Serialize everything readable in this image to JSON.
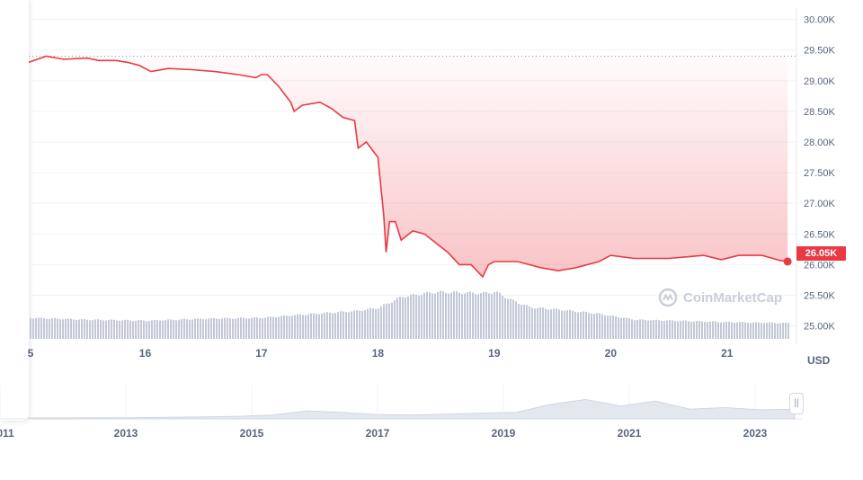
{
  "chart_data": {
    "type": "area",
    "title": "",
    "xlabel": "",
    "ylabel": "",
    "unit_label": "USD",
    "ylim": [
      24700,
      30200
    ],
    "y_ticks": [
      25000,
      25500,
      26000,
      26500,
      27000,
      27500,
      28000,
      28500,
      29000,
      29500,
      30000
    ],
    "y_tick_labels": [
      "25.00K",
      "25.50K",
      "26.00K",
      "26.50K",
      "27.00K",
      "27.50K",
      "28.00K",
      "28.50K",
      "29.00K",
      "29.50K",
      "30.00K"
    ],
    "x_ticks": [
      16,
      17,
      18,
      19,
      20,
      21
    ],
    "x_tick_labels": [
      "16",
      "17",
      "18",
      "19",
      "20",
      "21"
    ],
    "x_edge_label": "5",
    "xlim": [
      15,
      21.55
    ],
    "reference_level": 29400,
    "current_price": 26050,
    "current_price_label": "26.05K",
    "series": [
      {
        "type": "line",
        "x": [
          15.0,
          15.15,
          15.3,
          15.5,
          15.6,
          15.75,
          15.85,
          15.95,
          16.05,
          16.2,
          16.4,
          16.6,
          16.8,
          16.95,
          17.0,
          17.05,
          17.15,
          17.25,
          17.28,
          17.35,
          17.5,
          17.6,
          17.7,
          17.8,
          17.83,
          17.9,
          17.98,
          18.0,
          18.05,
          18.07,
          18.1,
          18.15,
          18.2,
          18.3,
          18.4,
          18.5,
          18.6,
          18.7,
          18.8,
          18.9,
          18.95,
          19.0,
          19.2,
          19.4,
          19.55,
          19.7,
          19.9,
          20.0,
          20.2,
          20.5,
          20.8,
          20.95,
          21.1,
          21.3,
          21.45,
          21.52
        ],
        "y": [
          29300,
          29400,
          29350,
          29370,
          29330,
          29330,
          29300,
          29250,
          29150,
          29200,
          29180,
          29150,
          29100,
          29050,
          29100,
          29100,
          28900,
          28650,
          28500,
          28600,
          28650,
          28550,
          28400,
          28350,
          27900,
          28000,
          27800,
          27750,
          26800,
          26200,
          26700,
          26700,
          26400,
          26550,
          26500,
          26350,
          26200,
          26000,
          26000,
          25800,
          26000,
          26050,
          26050,
          25950,
          25900,
          25950,
          26050,
          26150,
          26100,
          26100,
          26150,
          26080,
          26150,
          26150,
          26070,
          26050
        ]
      },
      {
        "name": "volume",
        "type": "bar",
        "x": [
          15.0,
          15.5,
          16.0,
          16.5,
          17.0,
          17.3,
          17.8,
          18.0,
          18.2,
          18.5,
          18.9,
          19.0,
          19.15,
          19.3,
          19.6,
          19.9,
          20.2,
          20.5,
          21.0,
          21.5
        ],
        "values": [
          0.44,
          0.4,
          0.38,
          0.42,
          0.44,
          0.5,
          0.58,
          0.65,
          0.88,
          0.98,
          0.95,
          0.98,
          0.8,
          0.66,
          0.6,
          0.52,
          0.4,
          0.38,
          0.35,
          0.33
        ]
      }
    ]
  },
  "navigator": {
    "x_labels": [
      "011",
      "2013",
      "2015",
      "2017",
      "2019",
      "2021",
      "2023"
    ],
    "area": [
      0.03,
      0.03,
      0.04,
      0.04,
      0.05,
      0.06,
      0.08,
      0.12,
      0.25,
      0.2,
      0.14,
      0.12,
      0.15,
      0.18,
      0.2,
      0.45,
      0.6,
      0.4,
      0.55,
      0.3,
      0.35,
      0.28,
      0.3
    ]
  },
  "watermark": {
    "text": "CoinMarketCap"
  },
  "colors": {
    "line_red": "#ea3943",
    "line_green": "#16c784",
    "axis_text": "#58667e",
    "grid": "#eff2f5",
    "volume_bar": "#c2c8d6",
    "navigator_fill": "#e3e7ee"
  },
  "handle_icon": "grip-lines-icon",
  "handle_glyph": "||"
}
